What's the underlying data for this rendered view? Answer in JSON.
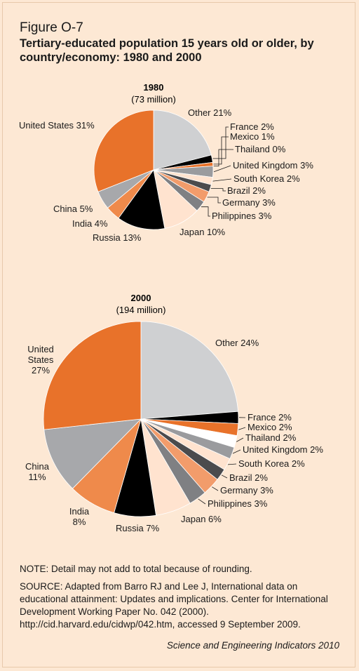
{
  "figure_label": "Figure O-7",
  "title": "Tertiary-educated population 15 years old or older, by country/economy: 1980 and 2000",
  "note": "NOTE: Detail may not add to total because of rounding.",
  "source": "SOURCE: Adapted from Barro RJ and Lee J, International data on educational attainment: Updates and implications. Center for International Development Working Paper No. 042 (2000). http://cid.harvard.edu/cidwp/042.htm, accessed 9 September 2009.",
  "credit": "Science and Engineering Indicators 2010",
  "colors": {
    "background": "#fde8d4",
    "other": "#cfd0d2",
    "france": "#000000",
    "mexico": "#e8722a",
    "thailand": "#ffffff",
    "united_kingdom": "#9a9b9e",
    "south_korea": "#ffe3cf",
    "brazil": "#4b4b4d",
    "germany": "#f29c6b",
    "philippines": "#7f8083",
    "japan": "#ffe3cf",
    "russia": "#000000",
    "india": "#ef8a4b",
    "china": "#a7a8ab",
    "united_states": "#e8722a"
  },
  "chart_data": [
    {
      "type": "pie",
      "title": "1980",
      "subtitle": "(73 million)",
      "unit": "percent",
      "slices": [
        {
          "key": "other",
          "name": "Other",
          "value": 21,
          "label": "Other 21%"
        },
        {
          "key": "france",
          "name": "France",
          "value": 2,
          "label": "France 2%"
        },
        {
          "key": "mexico",
          "name": "Mexico",
          "value": 1,
          "label": "Mexico 1%"
        },
        {
          "key": "thailand",
          "name": "Thailand",
          "value": 0,
          "label": "Thailand 0%"
        },
        {
          "key": "united_kingdom",
          "name": "United Kingdom",
          "value": 3,
          "label": "United Kingdom 3%"
        },
        {
          "key": "south_korea",
          "name": "South Korea",
          "value": 2,
          "label": "South Korea 2%"
        },
        {
          "key": "brazil",
          "name": "Brazil",
          "value": 2,
          "label": "Brazil 2%"
        },
        {
          "key": "germany",
          "name": "Germany",
          "value": 3,
          "label": "Germany 3%"
        },
        {
          "key": "philippines",
          "name": "Philippines",
          "value": 3,
          "label": "Philippines 3%"
        },
        {
          "key": "japan",
          "name": "Japan",
          "value": 10,
          "label": "Japan 10%"
        },
        {
          "key": "russia",
          "name": "Russia",
          "value": 13,
          "label": "Russia 13%"
        },
        {
          "key": "india",
          "name": "India",
          "value": 4,
          "label": "India 4%"
        },
        {
          "key": "china",
          "name": "China",
          "value": 5,
          "label": "China 5%"
        },
        {
          "key": "united_states",
          "name": "United States",
          "value": 31,
          "label": "United States 31%"
        }
      ]
    },
    {
      "type": "pie",
      "title": "2000",
      "subtitle": "(194 million)",
      "unit": "percent",
      "slices": [
        {
          "key": "other",
          "name": "Other",
          "value": 24,
          "label": "Other 24%"
        },
        {
          "key": "france",
          "name": "France",
          "value": 2,
          "label": "France 2%"
        },
        {
          "key": "mexico",
          "name": "Mexico",
          "value": 2,
          "label": "Mexico 2%"
        },
        {
          "key": "thailand",
          "name": "Thailand",
          "value": 2,
          "label": "Thailand 2%"
        },
        {
          "key": "united_kingdom",
          "name": "United Kingdom",
          "value": 2,
          "label": "United Kingdom 2%"
        },
        {
          "key": "south_korea",
          "name": "South Korea",
          "value": 2,
          "label": "South Korea 2%"
        },
        {
          "key": "brazil",
          "name": "Brazil",
          "value": 2,
          "label": "Brazil 2%"
        },
        {
          "key": "germany",
          "name": "Germany",
          "value": 3,
          "label": "Germany 3%"
        },
        {
          "key": "philippines",
          "name": "Philippines",
          "value": 3,
          "label": "Philippines 3%"
        },
        {
          "key": "japan",
          "name": "Japan",
          "value": 6,
          "label": "Japan 6%"
        },
        {
          "key": "russia",
          "name": "Russia",
          "value": 7,
          "label": "Russia 7%"
        },
        {
          "key": "india",
          "name": "India",
          "value": 8,
          "label": "India 8%"
        },
        {
          "key": "china",
          "name": "China",
          "value": 11,
          "label": "China 11%"
        },
        {
          "key": "united_states",
          "name": "United States",
          "value": 27,
          "label": "United States 27%"
        }
      ]
    }
  ]
}
